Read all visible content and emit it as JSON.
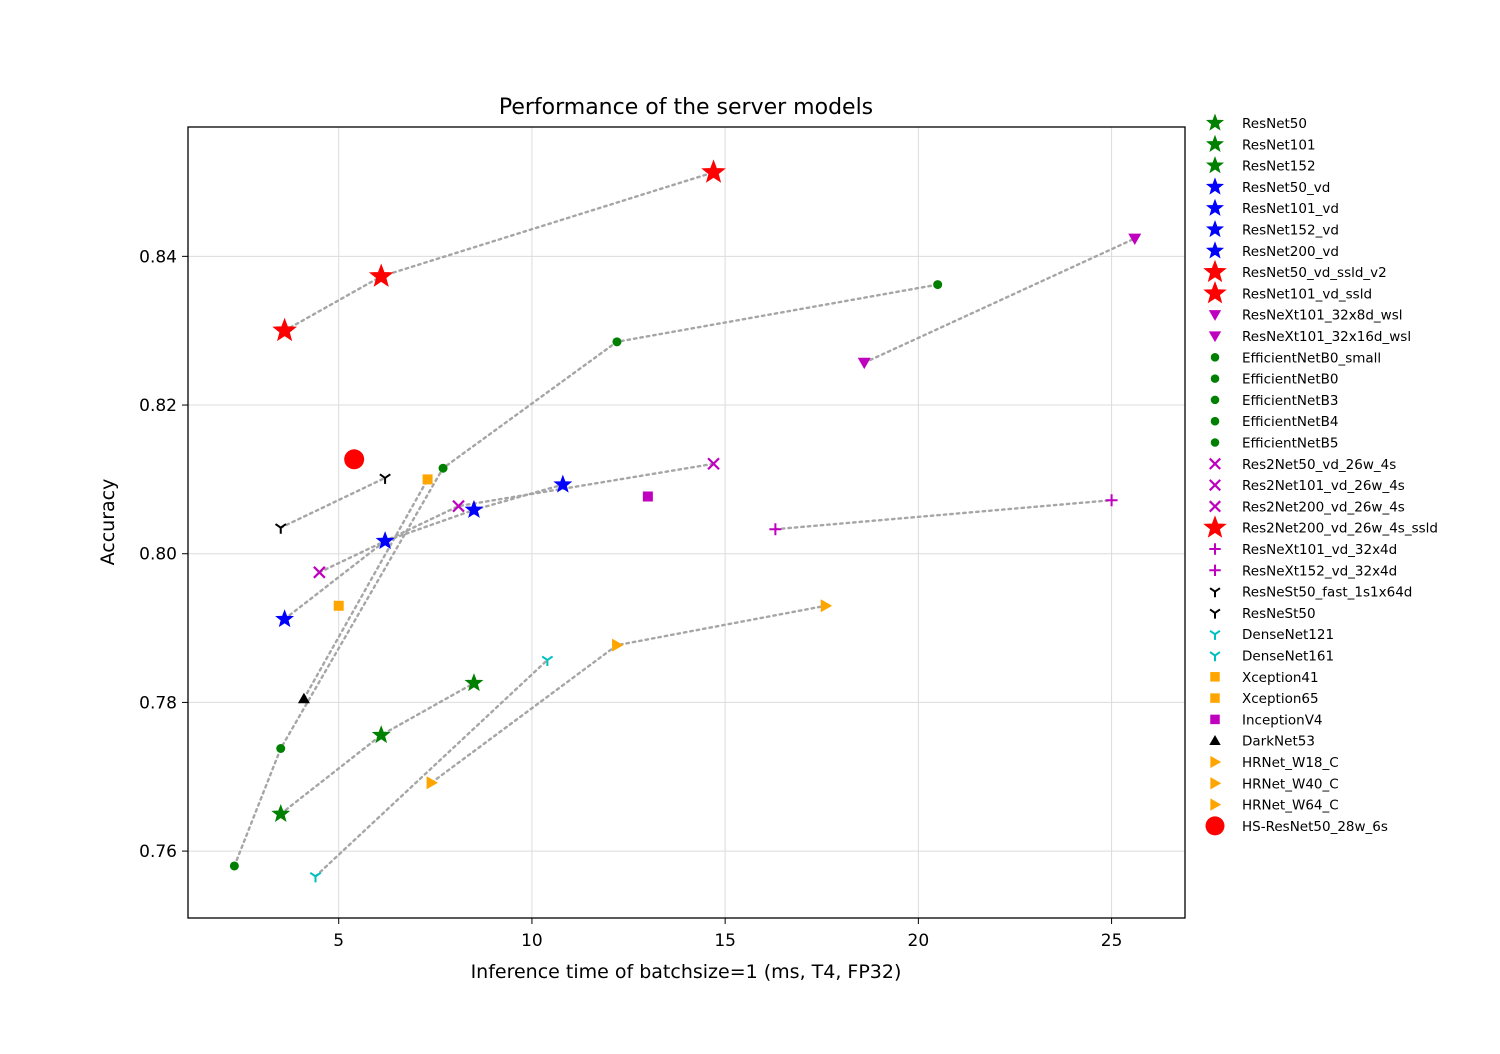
{
  "chart_data": {
    "type": "scatter",
    "title": "Performance of the server models",
    "xlabel": "Inference time of batchsize=1 (ms, T4, FP32)",
    "ylabel": "Accuracy",
    "xlim": [
      1.1,
      26.9
    ],
    "ylim": [
      0.751,
      0.8574
    ],
    "xticks": [
      "5",
      "10",
      "15",
      "20",
      "25"
    ],
    "xtick_values": [
      5,
      10,
      15,
      20,
      25
    ],
    "yticks": [
      "0.76",
      "0.78",
      "0.80",
      "0.82",
      "0.84"
    ],
    "ytick_values": [
      0.76,
      0.78,
      0.8,
      0.82,
      0.84
    ],
    "grid": true,
    "legend_position": "outside-right",
    "series": [
      {
        "name": "ResNet50",
        "x": 3.5,
        "y": 0.765,
        "marker": "star",
        "color": "#008000"
      },
      {
        "name": "ResNet101",
        "x": 6.1,
        "y": 0.7756,
        "marker": "star",
        "color": "#008000"
      },
      {
        "name": "ResNet152",
        "x": 8.5,
        "y": 0.7826,
        "marker": "star",
        "color": "#008000"
      },
      {
        "name": "ResNet50_vd",
        "x": 3.6,
        "y": 0.7912,
        "marker": "star",
        "color": "#0000ff"
      },
      {
        "name": "ResNet101_vd",
        "x": 6.2,
        "y": 0.8017,
        "marker": "star",
        "color": "#0000ff"
      },
      {
        "name": "ResNet152_vd",
        "x": 8.5,
        "y": 0.8059,
        "marker": "star",
        "color": "#0000ff"
      },
      {
        "name": "ResNet200_vd",
        "x": 10.8,
        "y": 0.8093,
        "marker": "star",
        "color": "#0000ff"
      },
      {
        "name": "ResNet50_vd_ssld_v2",
        "x": 3.6,
        "y": 0.83,
        "marker": "bigstar",
        "color": "#ff0000"
      },
      {
        "name": "ResNet101_vd_ssld",
        "x": 6.1,
        "y": 0.8373,
        "marker": "bigstar",
        "color": "#ff0000"
      },
      {
        "name": "ResNeXt101_32x8d_wsl",
        "x": 18.6,
        "y": 0.8257,
        "marker": "tri_down",
        "color": "#bf00bf"
      },
      {
        "name": "ResNeXt101_32x16d_wsl",
        "x": 25.6,
        "y": 0.8424,
        "marker": "tri_down",
        "color": "#bf00bf"
      },
      {
        "name": "EfficientNetB0_small",
        "x": 2.3,
        "y": 0.758,
        "marker": "dot",
        "color": "#008000"
      },
      {
        "name": "EfficientNetB0",
        "x": 3.5,
        "y": 0.7738,
        "marker": "dot",
        "color": "#008000"
      },
      {
        "name": "EfficientNetB3",
        "x": 7.7,
        "y": 0.8115,
        "marker": "dot",
        "color": "#008000"
      },
      {
        "name": "EfficientNetB4",
        "x": 12.2,
        "y": 0.8285,
        "marker": "dot",
        "color": "#008000"
      },
      {
        "name": "EfficientNetB5",
        "x": 20.5,
        "y": 0.8362,
        "marker": "dot",
        "color": "#008000"
      },
      {
        "name": "Res2Net50_vd_26w_4s",
        "x": 4.5,
        "y": 0.7975,
        "marker": "x",
        "color": "#bf00bf"
      },
      {
        "name": "Res2Net101_vd_26w_4s",
        "x": 8.1,
        "y": 0.8064,
        "marker": "x",
        "color": "#bf00bf"
      },
      {
        "name": "Res2Net200_vd_26w_4s",
        "x": 14.7,
        "y": 0.8121,
        "marker": "x",
        "color": "#bf00bf"
      },
      {
        "name": "Res2Net200_vd_26w_4s_ssld",
        "x": 14.7,
        "y": 0.8513,
        "marker": "bigstar",
        "color": "#ff0000"
      },
      {
        "name": "ResNeXt101_vd_32x4d",
        "x": 16.3,
        "y": 0.8033,
        "marker": "plus",
        "color": "#bf00bf"
      },
      {
        "name": "ResNeXt152_vd_32x4d",
        "x": 25.0,
        "y": 0.8072,
        "marker": "plus",
        "color": "#bf00bf"
      },
      {
        "name": "ResNeSt50_fast_1s1x64d",
        "x": 3.5,
        "y": 0.8035,
        "marker": "tri_up",
        "color": "#000000"
      },
      {
        "name": "ResNeSt50",
        "x": 6.2,
        "y": 0.8102,
        "marker": "tri_up",
        "color": "#000000"
      },
      {
        "name": "DenseNet121",
        "x": 4.4,
        "y": 0.7566,
        "marker": "tri_up",
        "color": "#00bfbf"
      },
      {
        "name": "DenseNet161",
        "x": 10.4,
        "y": 0.7857,
        "marker": "tri_up",
        "color": "#00bfbf"
      },
      {
        "name": "Xception41",
        "x": 5.0,
        "y": 0.793,
        "marker": "square",
        "color": "#ffa500"
      },
      {
        "name": "Xception65",
        "x": 7.3,
        "y": 0.81,
        "marker": "square",
        "color": "#ffa500"
      },
      {
        "name": "InceptionV4",
        "x": 13.0,
        "y": 0.8077,
        "marker": "square",
        "color": "#bf00bf"
      },
      {
        "name": "DarkNet53",
        "x": 4.1,
        "y": 0.7805,
        "marker": "triangle_up",
        "color": "#000000"
      },
      {
        "name": "HRNet_W18_C",
        "x": 7.4,
        "y": 0.7692,
        "marker": "triangle_right",
        "color": "#ffa500"
      },
      {
        "name": "HRNet_W40_C",
        "x": 12.2,
        "y": 0.7877,
        "marker": "triangle_right",
        "color": "#ffa500"
      },
      {
        "name": "HRNet_W64_C",
        "x": 17.6,
        "y": 0.793,
        "marker": "triangle_right",
        "color": "#ffa500"
      },
      {
        "name": "HS-ResNet50_28w_6s",
        "x": 5.4,
        "y": 0.8127,
        "marker": "bigdot",
        "color": "#ff0000"
      }
    ],
    "connections": [
      [
        "ResNet50",
        "ResNet101",
        "ResNet152"
      ],
      [
        "ResNet50_vd",
        "ResNet101_vd",
        "ResNet152_vd",
        "ResNet200_vd"
      ],
      [
        "ResNet50_vd_ssld_v2",
        "ResNet101_vd_ssld",
        "Res2Net200_vd_26w_4s_ssld"
      ],
      [
        "ResNeXt101_32x8d_wsl",
        "ResNeXt101_32x16d_wsl"
      ],
      [
        "EfficientNetB0_small",
        "EfficientNetB0",
        "EfficientNetB3",
        "EfficientNetB4",
        "EfficientNetB5"
      ],
      [
        "Res2Net50_vd_26w_4s",
        "Res2Net101_vd_26w_4s",
        "Res2Net200_vd_26w_4s"
      ],
      [
        "ResNeXt101_vd_32x4d",
        "ResNeXt152_vd_32x4d"
      ],
      [
        "ResNeSt50_fast_1s1x64d",
        "ResNeSt50"
      ],
      [
        "DenseNet121",
        "DenseNet161"
      ],
      [
        "DarkNet53",
        "Xception65"
      ],
      [
        "HRNet_W18_C",
        "HRNet_W40_C",
        "HRNet_W64_C"
      ]
    ],
    "connection_color": "#a6a6a6"
  }
}
